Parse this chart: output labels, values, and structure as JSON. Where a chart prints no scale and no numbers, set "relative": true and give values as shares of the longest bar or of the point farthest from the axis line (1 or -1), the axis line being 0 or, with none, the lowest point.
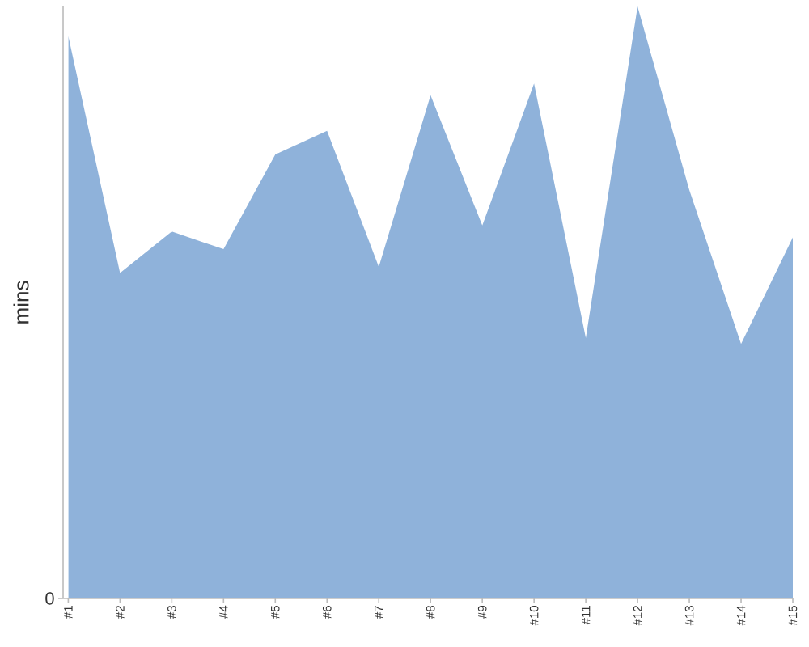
{
  "chart_data": {
    "type": "area",
    "relative": true,
    "ylabel": "mins",
    "categories": [
      "#1",
      "#2",
      "#3",
      "#4",
      "#5",
      "#6",
      "#7",
      "#8",
      "#9",
      "#10",
      "#11",
      "#12",
      "#13",
      "#14",
      "#15"
    ],
    "values": [
      0.95,
      0.55,
      0.62,
      0.59,
      0.75,
      0.79,
      0.56,
      0.85,
      0.63,
      0.87,
      0.44,
      1,
      0.69,
      0.43,
      0.61
    ],
    "color": "#8fb2da",
    "annotations": [
      "0"
    ]
  }
}
